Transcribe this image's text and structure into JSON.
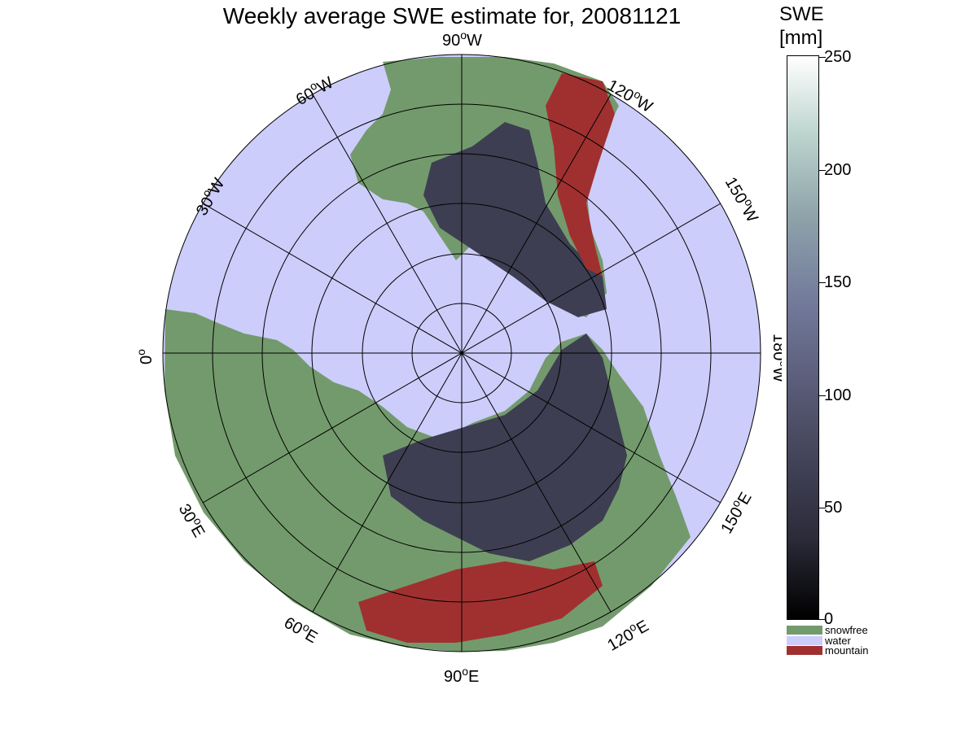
{
  "title": "Weekly average SWE estimate for, 20081121",
  "labels": {
    "w90": "90",
    "w90_unit": "W",
    "w120": "120",
    "w120_unit": "W",
    "w150": "150",
    "w150_unit": "W",
    "e180": "180",
    "e180_unit": "W",
    "e150": "150",
    "e150_unit": "E",
    "e120": "120",
    "e120_unit": "E",
    "e90": "90",
    "e90_unit": "E",
    "e60": "60",
    "e60_unit": "E",
    "e30": "30",
    "e30_unit": "E",
    "zero": "0",
    "w30": "30",
    "w30_unit": "W",
    "w60": "60",
    "w60_unit": "W",
    "deg": "o"
  },
  "colorbar": {
    "title_line1": "SWE",
    "title_line2": "[mm]",
    "ticks": [
      "250",
      "200",
      "150",
      "100",
      "50",
      "0"
    ],
    "range": [
      0,
      250
    ]
  },
  "legend": [
    {
      "label": "snowfree",
      "color": "#739a6c"
    },
    {
      "label": "water",
      "color": "#cccdfb"
    },
    {
      "label": "mountain",
      "color": "#a03030"
    }
  ],
  "colors": {
    "ocean": "#cccdfb",
    "snowfree": "#739a6c",
    "mountain": "#a03030",
    "snow": "#3c3c4c"
  }
}
